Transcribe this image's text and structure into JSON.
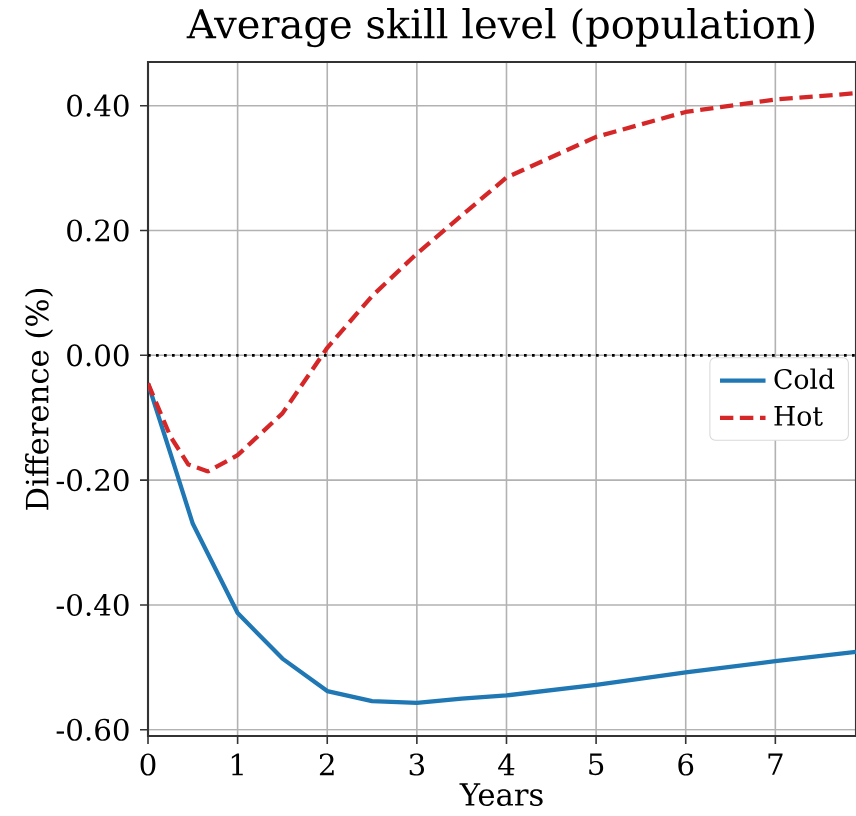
{
  "chart_data": {
    "type": "line",
    "title": "Average skill level (population)",
    "xlabel": "Years",
    "ylabel": "Difference (%)",
    "xlim": [
      0,
      7.9
    ],
    "ylim": [
      -0.61,
      0.47
    ],
    "xticks": [
      0,
      1,
      2,
      3,
      4,
      5,
      6,
      7
    ],
    "yticks": [
      {
        "value": -0.6,
        "label": "-0.60"
      },
      {
        "value": -0.4,
        "label": "-0.40"
      },
      {
        "value": -0.2,
        "label": "-0.20"
      },
      {
        "value": 0,
        "label": "0.00"
      },
      {
        "value": 0.2,
        "label": "0.20"
      },
      {
        "value": 0.4,
        "label": "0.40"
      }
    ],
    "grid": true,
    "legend": "right",
    "ref_lines": [
      {
        "axis": "y",
        "value": 0,
        "color": "#000000",
        "line_style": "dotted"
      }
    ],
    "series": [
      {
        "name": "Cold",
        "color": "#1f77b4",
        "line_style": "solid",
        "x": [
          0,
          0.25,
          0.5,
          1,
          1.5,
          2,
          2.5,
          3,
          3.5,
          4,
          5,
          6,
          7,
          7.9
        ],
        "values": [
          -0.045,
          -0.157,
          -0.27,
          -0.413,
          -0.486,
          -0.538,
          -0.554,
          -0.557,
          -0.55,
          -0.545,
          -0.528,
          -0.508,
          -0.49,
          -0.475
        ]
      },
      {
        "name": "Hot",
        "color": "#d62728",
        "line_style": "dashed",
        "x": [
          0,
          0.25,
          0.45,
          0.67,
          1,
          1.5,
          2,
          2.5,
          3,
          4,
          5,
          6,
          7,
          7.9
        ],
        "values": [
          -0.045,
          -0.13,
          -0.175,
          -0.186,
          -0.16,
          -0.093,
          0.012,
          0.095,
          0.163,
          0.285,
          0.35,
          0.39,
          0.41,
          0.42
        ]
      }
    ]
  }
}
